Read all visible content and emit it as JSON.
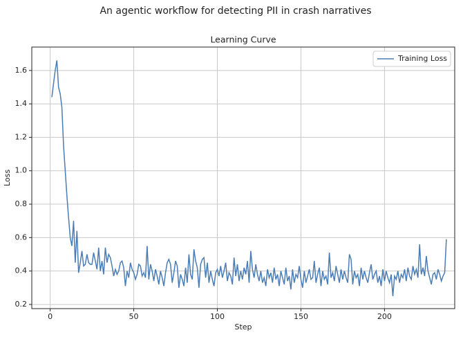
{
  "chart_data": {
    "type": "line",
    "suptitle": "An agentic workflow for detecting PII in crash narratives",
    "title": "Learning Curve",
    "xlabel": "Step",
    "ylabel": "Loss",
    "xlim": [
      -11,
      242
    ],
    "ylim": [
      0.175,
      1.74
    ],
    "xticks": [
      0,
      50,
      100,
      150,
      200
    ],
    "yticks": [
      0.2,
      0.4,
      0.6,
      0.8,
      {
        "value": 1,
        "label": "1.0"
      },
      1.2,
      1.4,
      1.6
    ],
    "grid": true,
    "legend": "upper right",
    "x": [
      1,
      2,
      3,
      4,
      5,
      6,
      7,
      8,
      9,
      10,
      11,
      12,
      13,
      14,
      15,
      16,
      17,
      18,
      19,
      20,
      21,
      22,
      23,
      24,
      25,
      26,
      27,
      28,
      29,
      30,
      31,
      32,
      33,
      34,
      35,
      36,
      37,
      38,
      39,
      40,
      41,
      42,
      43,
      44,
      45,
      46,
      47,
      48,
      49,
      50,
      51,
      52,
      53,
      54,
      55,
      56,
      57,
      58,
      59,
      60,
      61,
      62,
      63,
      64,
      65,
      66,
      67,
      68,
      69,
      70,
      71,
      72,
      73,
      74,
      75,
      76,
      77,
      78,
      79,
      80,
      81,
      82,
      83,
      84,
      85,
      86,
      87,
      88,
      89,
      90,
      91,
      92,
      93,
      94,
      95,
      96,
      97,
      98,
      99,
      100,
      101,
      102,
      103,
      104,
      105,
      106,
      107,
      108,
      109,
      110,
      111,
      112,
      113,
      114,
      115,
      116,
      117,
      118,
      119,
      120,
      121,
      122,
      123,
      124,
      125,
      126,
      127,
      128,
      129,
      130,
      131,
      132,
      133,
      134,
      135,
      136,
      137,
      138,
      139,
      140,
      141,
      142,
      143,
      144,
      145,
      146,
      147,
      148,
      149,
      150,
      151,
      152,
      153,
      154,
      155,
      156,
      157,
      158,
      159,
      160,
      161,
      162,
      163,
      164,
      165,
      166,
      167,
      168,
      169,
      170,
      171,
      172,
      173,
      174,
      175,
      176,
      177,
      178,
      179,
      180,
      181,
      182,
      183,
      184,
      185,
      186,
      187,
      188,
      189,
      190,
      191,
      192,
      193,
      194,
      195,
      196,
      197,
      198,
      199,
      200,
      201,
      202,
      203,
      204,
      205,
      206,
      207,
      208,
      209,
      210,
      211,
      212,
      213,
      214,
      215,
      216,
      217,
      218,
      219,
      220,
      221,
      222,
      223,
      224,
      225,
      226,
      227,
      228,
      229,
      230,
      231,
      232,
      233,
      234,
      235,
      236,
      237
    ],
    "series": [
      {
        "name": "Training Loss",
        "color": "#4a7cb5",
        "values": [
          1.44,
          1.52,
          1.6,
          1.66,
          1.5,
          1.46,
          1.38,
          1.15,
          1.0,
          0.85,
          0.72,
          0.6,
          0.55,
          0.7,
          0.45,
          0.64,
          0.39,
          0.45,
          0.52,
          0.43,
          0.44,
          0.5,
          0.45,
          0.44,
          0.44,
          0.51,
          0.46,
          0.41,
          0.54,
          0.4,
          0.46,
          0.38,
          0.54,
          0.45,
          0.5,
          0.48,
          0.43,
          0.37,
          0.41,
          0.38,
          0.4,
          0.45,
          0.46,
          0.42,
          0.31,
          0.4,
          0.36,
          0.45,
          0.41,
          0.39,
          0.35,
          0.38,
          0.44,
          0.43,
          0.37,
          0.39,
          0.36,
          0.55,
          0.35,
          0.44,
          0.4,
          0.34,
          0.41,
          0.37,
          0.32,
          0.4,
          0.36,
          0.31,
          0.39,
          0.45,
          0.47,
          0.44,
          0.33,
          0.39,
          0.46,
          0.43,
          0.3,
          0.38,
          0.35,
          0.31,
          0.42,
          0.33,
          0.5,
          0.38,
          0.35,
          0.53,
          0.46,
          0.42,
          0.3,
          0.44,
          0.47,
          0.48,
          0.36,
          0.45,
          0.33,
          0.4,
          0.35,
          0.31,
          0.39,
          0.41,
          0.37,
          0.43,
          0.36,
          0.4,
          0.45,
          0.34,
          0.39,
          0.37,
          0.32,
          0.48,
          0.37,
          0.44,
          0.34,
          0.4,
          0.35,
          0.42,
          0.38,
          0.46,
          0.33,
          0.52,
          0.41,
          0.36,
          0.44,
          0.38,
          0.34,
          0.4,
          0.33,
          0.36,
          0.31,
          0.41,
          0.36,
          0.39,
          0.33,
          0.42,
          0.35,
          0.38,
          0.31,
          0.4,
          0.36,
          0.32,
          0.42,
          0.34,
          0.37,
          0.29,
          0.41,
          0.33,
          0.38,
          0.36,
          0.43,
          0.35,
          0.3,
          0.4,
          0.33,
          0.37,
          0.41,
          0.35,
          0.36,
          0.46,
          0.33,
          0.38,
          0.42,
          0.31,
          0.4,
          0.35,
          0.37,
          0.32,
          0.51,
          0.36,
          0.39,
          0.34,
          0.43,
          0.38,
          0.33,
          0.41,
          0.35,
          0.4,
          0.36,
          0.33,
          0.5,
          0.47,
          0.32,
          0.4,
          0.36,
          0.38,
          0.31,
          0.42,
          0.35,
          0.4,
          0.36,
          0.33,
          0.39,
          0.44,
          0.35,
          0.38,
          0.4,
          0.33,
          0.37,
          0.31,
          0.41,
          0.34,
          0.4,
          0.36,
          0.33,
          0.38,
          0.25,
          0.37,
          0.35,
          0.4,
          0.33,
          0.38,
          0.36,
          0.41,
          0.34,
          0.42,
          0.37,
          0.35,
          0.43,
          0.38,
          0.41,
          0.36,
          0.56,
          0.38,
          0.42,
          0.37,
          0.49,
          0.4,
          0.36,
          0.32,
          0.38,
          0.39,
          0.35,
          0.41,
          0.38,
          0.34,
          0.37,
          0.39,
          0.59
        ]
      }
    ]
  }
}
